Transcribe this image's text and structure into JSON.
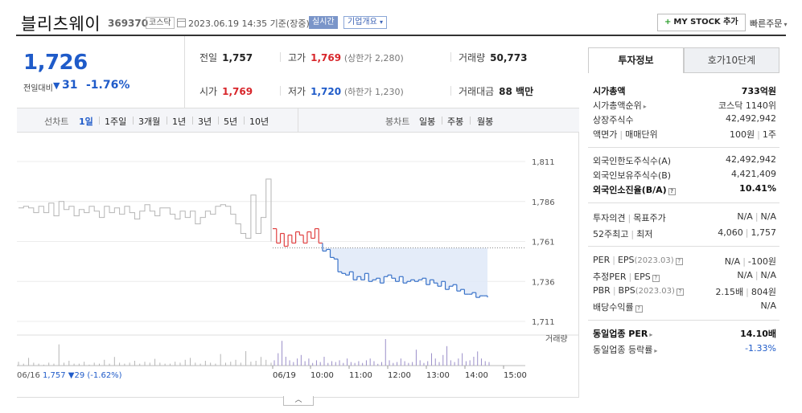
{
  "header": {
    "stock_name": "블리츠웨이",
    "stock_code": "369370",
    "market": "코스닥",
    "datetime": "2023.06.19 14:35 기준(장중)",
    "live_badge": "실시간",
    "company_button": "기업개요",
    "mystock_button": "MY STOCK 추가",
    "quick_order": "빠른주문"
  },
  "price": {
    "current": "1,726",
    "diff_label": "전일대비",
    "diff_value": "31",
    "diff_rate": "-1.76%"
  },
  "price_table": {
    "prev_label": "전일",
    "prev_value": "1,757",
    "high_label": "고가",
    "high_value": "1,769",
    "high_limit": "(상한가 2,280)",
    "volume_label": "거래량",
    "volume_value": "50,773",
    "open_label": "시가",
    "open_value": "1,769",
    "low_label": "저가",
    "low_value": "1,720",
    "low_limit": "(하한가 1,230)",
    "amount_label": "거래대금",
    "amount_value": "88 백만"
  },
  "chart_tabs": {
    "line_label": "선차트",
    "line_periods": [
      "1일",
      "1주일",
      "3개월",
      "1년",
      "3년",
      "5년",
      "10년"
    ],
    "active_period": "1일",
    "candle_label": "봉차트",
    "candle_periods": [
      "일봉",
      "주봉",
      "월봉"
    ]
  },
  "chart_data": {
    "type": "line",
    "y_ticks": [
      "1,811",
      "1,786",
      "1,761",
      "1,736",
      "1,711"
    ],
    "ylim": [
      1711,
      1811
    ],
    "x_ticks": [
      "06/19",
      "10:00",
      "11:00",
      "12:00",
      "13:00",
      "14:00",
      "15:00"
    ],
    "prev_day_label": "06/16",
    "prev_day_summary": "1,757 ▼29 (-1.62%)",
    "volume_label": "거래량",
    "reference_price": 1757,
    "prev_day_series": {
      "name": "06/16",
      "values": [
        1782,
        1783,
        1782,
        1779,
        1783,
        1779,
        1785,
        1777,
        1786,
        1781,
        1783,
        1777,
        1781,
        1779,
        1783,
        1780,
        1776,
        1783,
        1779,
        1782,
        1778,
        1783,
        1779,
        1775,
        1780,
        1784,
        1780,
        1777,
        1782,
        1782,
        1778,
        1775,
        1780,
        1776,
        1780,
        1772,
        1776,
        1780,
        1778,
        1783,
        1784,
        1783,
        1778,
        1772,
        1766,
        1763,
        1790,
        1766,
        1776,
        1800,
        1761
      ]
    },
    "today_series": {
      "name": "06/19",
      "values": [
        1769,
        1760,
        1766,
        1758,
        1765,
        1760,
        1767,
        1765,
        1760,
        1767,
        1763,
        1769,
        1760,
        1755,
        1756,
        1751,
        1750,
        1742,
        1741,
        1740,
        1742,
        1737,
        1739,
        1737,
        1741,
        1736,
        1737,
        1738,
        1735,
        1739,
        1740,
        1738,
        1736,
        1739,
        1735,
        1736,
        1737,
        1736,
        1737,
        1738,
        1734,
        1737,
        1735,
        1733,
        1736,
        1731,
        1733,
        1734,
        1730,
        1731,
        1728,
        1728,
        1729,
        1726,
        1727,
        1727,
        1726
      ]
    }
  },
  "info_panel": {
    "tab_active": "투자정보",
    "tab_inactive": "호가10단계",
    "market_cap_label": "시가총액",
    "market_cap_value": "733억원",
    "cap_rank_label": "시가총액순위",
    "cap_rank_value": "코스닥 1140위",
    "shares_label": "상장주식수",
    "shares_value": "42,492,942",
    "par_label": "액면가",
    "unit_label": "매매단위",
    "par_value": "100원",
    "unit_value": "1주",
    "foreign_limit_label": "외국인한도주식수(A)",
    "foreign_limit_value": "42,492,942",
    "foreign_hold_label": "외국인보유주식수(B)",
    "foreign_hold_value": "4,421,409",
    "foreign_ratio_label": "외국인소진율(B/A)",
    "foreign_ratio_value": "10.41%",
    "opinion_label": "투자의견",
    "target_label": "목표주가",
    "opinion_value": "N/A",
    "target_value": "N/A",
    "high52_label": "52주최고",
    "low52_label": "최저",
    "high52_value": "4,060",
    "low52_value": "1,757",
    "per_label": "PER",
    "eps_label": "EPS",
    "eps_period": "(2023.03)",
    "per_value": "N/A",
    "eps_value": "-100원",
    "est_per_label": "추정PER",
    "est_eps_label": "EPS",
    "est_per_value": "N/A",
    "est_eps_value": "N/A",
    "pbr_label": "PBR",
    "bps_label": "BPS",
    "bps_period": "(2023.03)",
    "pbr_value": "2.15배",
    "bps_value": "804원",
    "dividend_label": "배당수익률",
    "dividend_value": "N/A",
    "sector_per_label": "동일업종 PER",
    "sector_per_value": "14.10배",
    "sector_change_label": "동일업종 등락률",
    "sector_change_value": "-1.33%"
  }
}
